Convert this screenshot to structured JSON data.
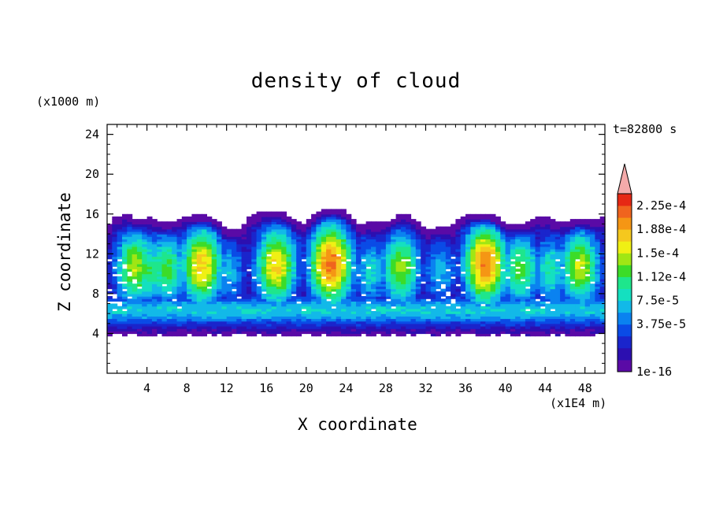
{
  "chart_data": {
    "type": "heatmap",
    "title": "density of cloud",
    "xlabel": "X coordinate",
    "ylabel": "Z coordinate",
    "x_unit_note": "(x1E4 m)",
    "y_unit_note": "(x1000 m)",
    "time_label": "t=82800 s",
    "xlim": [
      0,
      50
    ],
    "ylim": [
      0,
      25
    ],
    "x_ticks": [
      "4",
      "8",
      "12",
      "16",
      "20",
      "24",
      "28",
      "32",
      "36",
      "40",
      "44",
      "48"
    ],
    "y_ticks": [
      "4",
      "8",
      "12",
      "16",
      "20",
      "24"
    ],
    "colorbar": {
      "tick_labels": [
        "2.25e-4",
        "1.88e-4",
        "1.5e-4",
        "1.12e-4",
        "7.5e-5",
        "3.75e-5",
        "1e-16"
      ],
      "colors": [
        "#5a0aa6",
        "#2c0fb0",
        "#1a25cc",
        "#0a4be6",
        "#0a82f0",
        "#12b9e8",
        "#14e0c0",
        "#1ee68c",
        "#3cdc28",
        "#a0e614",
        "#f0f014",
        "#f5c81e",
        "#f59614",
        "#f0641e",
        "#e62814",
        "#f4aaaa"
      ],
      "extend": "max"
    },
    "cloud_cells": [
      {
        "x": 2.8,
        "top": 14.8,
        "peak": 0.7
      },
      {
        "x": 4.2,
        "top": 15.5,
        "peak": 0.55
      },
      {
        "x": 6.0,
        "top": 15.0,
        "peak": 0.6
      },
      {
        "x": 9.5,
        "top": 15.8,
        "peak": 0.82
      },
      {
        "x": 12.2,
        "top": 14.0,
        "peak": 0.4
      },
      {
        "x": 17.0,
        "top": 16.2,
        "peak": 0.8
      },
      {
        "x": 22.5,
        "top": 16.5,
        "peak": 0.95
      },
      {
        "x": 26.5,
        "top": 15.0,
        "peak": 0.45
      },
      {
        "x": 29.5,
        "top": 15.2,
        "peak": 0.68
      },
      {
        "x": 33.5,
        "top": 14.5,
        "peak": 0.4
      },
      {
        "x": 38.0,
        "top": 16.0,
        "peak": 0.93
      },
      {
        "x": 41.5,
        "top": 15.0,
        "peak": 0.62
      },
      {
        "x": 44.5,
        "top": 15.0,
        "peak": 0.5
      },
      {
        "x": 47.5,
        "top": 15.5,
        "peak": 0.72
      }
    ]
  }
}
